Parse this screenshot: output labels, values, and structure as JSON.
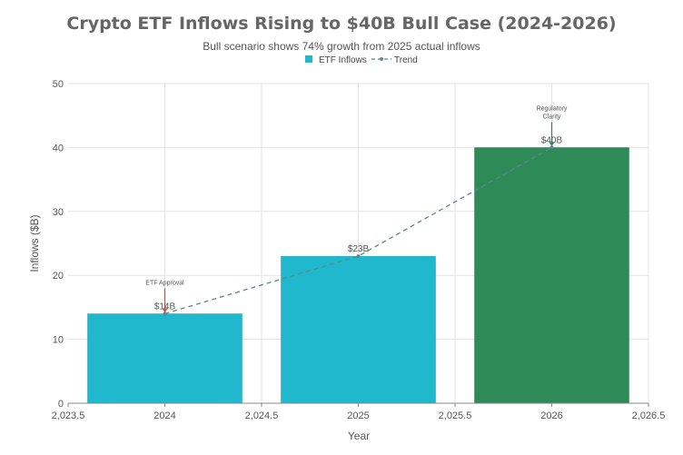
{
  "chart_data": {
    "type": "bar",
    "title": "Crypto ETF Inflows Rising to $40B Bull Case (2024-2026)",
    "subtitle": "Bull scenario shows 74% growth from 2025 actual inflows",
    "xlabel": "Year",
    "ylabel": "Inflows ($B)",
    "xlim": [
      2023.5,
      2026.5
    ],
    "ylim": [
      0,
      50
    ],
    "x_ticks": [
      2023.5,
      2024,
      2024.5,
      2025,
      2025.5,
      2026,
      2026.5
    ],
    "x_tick_labels": [
      "2,023.5",
      "2024",
      "2,024.5",
      "2025",
      "2,025.5",
      "2026",
      "2,026.5"
    ],
    "y_ticks": [
      0,
      10,
      20,
      30,
      40,
      50
    ],
    "y_tick_labels": [
      "0",
      "10",
      "20",
      "30",
      "40",
      "50"
    ],
    "grid": true,
    "legend": [
      {
        "label": "ETF Inflows",
        "type": "bar",
        "color": "#1FB8CD"
      },
      {
        "label": "Trend",
        "type": "line",
        "color": "#5D878F"
      }
    ],
    "series": [
      {
        "name": "ETF Inflows",
        "x": [
          2024,
          2025,
          2026
        ],
        "values": [
          14,
          23,
          40
        ],
        "colors": [
          "#1FB8CD",
          "#1FB8CD",
          "#2E8B57"
        ],
        "labels": [
          "$14B",
          "$23B",
          "$40B"
        ]
      },
      {
        "name": "Trend",
        "x": [
          2024,
          2025,
          2026
        ],
        "values": [
          14,
          23,
          40
        ],
        "color": "#5D878F",
        "style": "dashed"
      }
    ],
    "annotations": [
      {
        "x": 2024,
        "y": 14,
        "lines": [
          "ETF Approval"
        ],
        "color": "#DB4545"
      },
      {
        "x": 2026,
        "y": 40,
        "lines": [
          "Regulatory",
          "Clarity"
        ],
        "color": "#2E8B57"
      }
    ]
  }
}
